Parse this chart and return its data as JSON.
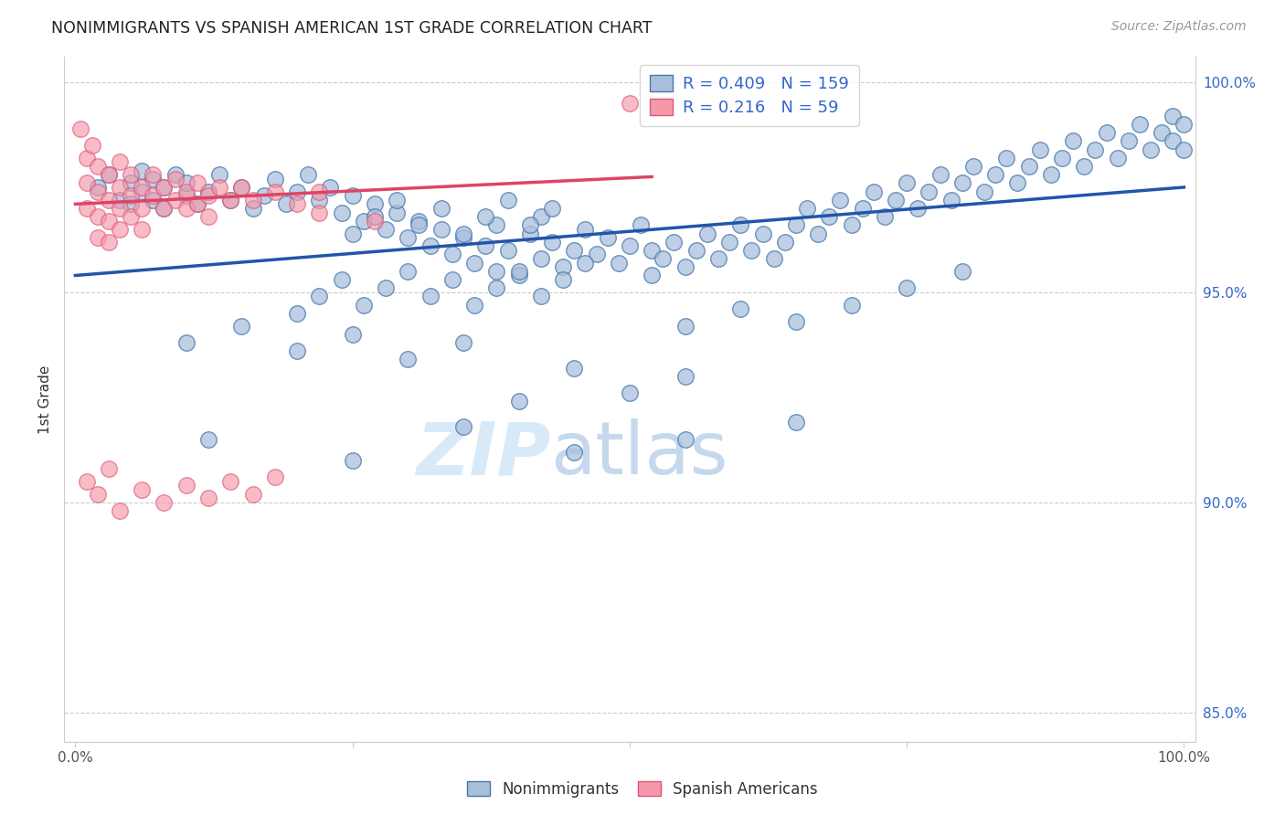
{
  "title": "NONIMMIGRANTS VS SPANISH AMERICAN 1ST GRADE CORRELATION CHART",
  "source": "Source: ZipAtlas.com",
  "ylabel": "1st Grade",
  "blue_R": 0.409,
  "blue_N": 159,
  "pink_R": 0.216,
  "pink_N": 59,
  "legend_text_color": "#3366cc",
  "blue_color": "#aabfdd",
  "pink_color": "#f599aa",
  "blue_edge_color": "#4477aa",
  "pink_edge_color": "#dd5577",
  "blue_line_color": "#2255aa",
  "pink_line_color": "#dd4466",
  "watermark_zip": "ZIP",
  "watermark_atlas": "atlas",
  "background_color": "#ffffff",
  "blue_line_x": [
    0.0,
    1.0
  ],
  "blue_line_y": [
    95.4,
    97.5
  ],
  "pink_line_x": [
    0.0,
    0.52
  ],
  "pink_line_y": [
    97.1,
    97.75
  ],
  "xlim": [
    -0.01,
    1.01
  ],
  "ylim": [
    84.3,
    100.6
  ],
  "yticks": [
    85.0,
    90.0,
    95.0,
    100.0
  ],
  "ytick_labels": [
    "85.0%",
    "90.0%",
    "95.0%",
    "100.0%"
  ],
  "blue_scatter": [
    [
      0.02,
      97.5
    ],
    [
      0.03,
      97.8
    ],
    [
      0.04,
      97.2
    ],
    [
      0.05,
      97.6
    ],
    [
      0.05,
      97.1
    ],
    [
      0.06,
      97.9
    ],
    [
      0.06,
      97.4
    ],
    [
      0.07,
      97.7
    ],
    [
      0.07,
      97.2
    ],
    [
      0.08,
      97.5
    ],
    [
      0.08,
      97.0
    ],
    [
      0.09,
      97.8
    ],
    [
      0.1,
      97.3
    ],
    [
      0.1,
      97.6
    ],
    [
      0.11,
      97.1
    ],
    [
      0.12,
      97.4
    ],
    [
      0.13,
      97.8
    ],
    [
      0.14,
      97.2
    ],
    [
      0.15,
      97.5
    ],
    [
      0.16,
      97.0
    ],
    [
      0.17,
      97.3
    ],
    [
      0.18,
      97.7
    ],
    [
      0.19,
      97.1
    ],
    [
      0.2,
      97.4
    ],
    [
      0.21,
      97.8
    ],
    [
      0.22,
      97.2
    ],
    [
      0.23,
      97.5
    ],
    [
      0.24,
      96.9
    ],
    [
      0.25,
      97.3
    ],
    [
      0.26,
      96.7
    ],
    [
      0.27,
      97.1
    ],
    [
      0.28,
      96.5
    ],
    [
      0.29,
      96.9
    ],
    [
      0.3,
      96.3
    ],
    [
      0.31,
      96.7
    ],
    [
      0.32,
      96.1
    ],
    [
      0.33,
      96.5
    ],
    [
      0.34,
      95.9
    ],
    [
      0.35,
      96.3
    ],
    [
      0.36,
      95.7
    ],
    [
      0.37,
      96.1
    ],
    [
      0.38,
      96.6
    ],
    [
      0.38,
      95.5
    ],
    [
      0.39,
      96.0
    ],
    [
      0.4,
      95.4
    ],
    [
      0.41,
      96.4
    ],
    [
      0.42,
      96.8
    ],
    [
      0.42,
      95.8
    ],
    [
      0.43,
      96.2
    ],
    [
      0.44,
      95.6
    ],
    [
      0.45,
      96.0
    ],
    [
      0.46,
      96.5
    ],
    [
      0.47,
      95.9
    ],
    [
      0.48,
      96.3
    ],
    [
      0.49,
      95.7
    ],
    [
      0.5,
      96.1
    ],
    [
      0.51,
      96.6
    ],
    [
      0.52,
      96.0
    ],
    [
      0.52,
      95.4
    ],
    [
      0.53,
      95.8
    ],
    [
      0.54,
      96.2
    ],
    [
      0.55,
      95.6
    ],
    [
      0.56,
      96.0
    ],
    [
      0.57,
      96.4
    ],
    [
      0.58,
      95.8
    ],
    [
      0.59,
      96.2
    ],
    [
      0.6,
      96.6
    ],
    [
      0.61,
      96.0
    ],
    [
      0.62,
      96.4
    ],
    [
      0.63,
      95.8
    ],
    [
      0.64,
      96.2
    ],
    [
      0.65,
      96.6
    ],
    [
      0.66,
      97.0
    ],
    [
      0.67,
      96.4
    ],
    [
      0.68,
      96.8
    ],
    [
      0.69,
      97.2
    ],
    [
      0.7,
      96.6
    ],
    [
      0.71,
      97.0
    ],
    [
      0.72,
      97.4
    ],
    [
      0.73,
      96.8
    ],
    [
      0.74,
      97.2
    ],
    [
      0.75,
      97.6
    ],
    [
      0.76,
      97.0
    ],
    [
      0.77,
      97.4
    ],
    [
      0.78,
      97.8
    ],
    [
      0.79,
      97.2
    ],
    [
      0.8,
      97.6
    ],
    [
      0.81,
      98.0
    ],
    [
      0.82,
      97.4
    ],
    [
      0.83,
      97.8
    ],
    [
      0.84,
      98.2
    ],
    [
      0.85,
      97.6
    ],
    [
      0.86,
      98.0
    ],
    [
      0.87,
      98.4
    ],
    [
      0.88,
      97.8
    ],
    [
      0.89,
      98.2
    ],
    [
      0.9,
      98.6
    ],
    [
      0.91,
      98.0
    ],
    [
      0.92,
      98.4
    ],
    [
      0.93,
      98.8
    ],
    [
      0.94,
      98.2
    ],
    [
      0.95,
      98.6
    ],
    [
      0.96,
      99.0
    ],
    [
      0.97,
      98.4
    ],
    [
      0.98,
      98.8
    ],
    [
      0.99,
      99.2
    ],
    [
      0.99,
      98.6
    ],
    [
      1.0,
      99.0
    ],
    [
      1.0,
      98.4
    ],
    [
      0.25,
      96.4
    ],
    [
      0.27,
      96.8
    ],
    [
      0.29,
      97.2
    ],
    [
      0.31,
      96.6
    ],
    [
      0.33,
      97.0
    ],
    [
      0.35,
      96.4
    ],
    [
      0.37,
      96.8
    ],
    [
      0.39,
      97.2
    ],
    [
      0.41,
      96.6
    ],
    [
      0.43,
      97.0
    ],
    [
      0.2,
      94.5
    ],
    [
      0.22,
      94.9
    ],
    [
      0.24,
      95.3
    ],
    [
      0.26,
      94.7
    ],
    [
      0.28,
      95.1
    ],
    [
      0.3,
      95.5
    ],
    [
      0.32,
      94.9
    ],
    [
      0.34,
      95.3
    ],
    [
      0.36,
      94.7
    ],
    [
      0.38,
      95.1
    ],
    [
      0.4,
      95.5
    ],
    [
      0.42,
      94.9
    ],
    [
      0.44,
      95.3
    ],
    [
      0.46,
      95.7
    ],
    [
      0.1,
      93.8
    ],
    [
      0.15,
      94.2
    ],
    [
      0.2,
      93.6
    ],
    [
      0.25,
      94.0
    ],
    [
      0.3,
      93.4
    ],
    [
      0.35,
      93.8
    ],
    [
      0.4,
      92.4
    ],
    [
      0.45,
      93.2
    ],
    [
      0.5,
      92.6
    ],
    [
      0.55,
      93.0
    ],
    [
      0.12,
      91.5
    ],
    [
      0.25,
      91.0
    ],
    [
      0.35,
      91.8
    ],
    [
      0.45,
      91.2
    ],
    [
      0.55,
      91.5
    ],
    [
      0.65,
      91.9
    ],
    [
      0.55,
      94.2
    ],
    [
      0.6,
      94.6
    ],
    [
      0.65,
      94.3
    ],
    [
      0.7,
      94.7
    ],
    [
      0.75,
      95.1
    ],
    [
      0.8,
      95.5
    ]
  ],
  "pink_scatter": [
    [
      0.005,
      98.9
    ],
    [
      0.01,
      98.2
    ],
    [
      0.01,
      97.6
    ],
    [
      0.01,
      97.0
    ],
    [
      0.015,
      98.5
    ],
    [
      0.02,
      98.0
    ],
    [
      0.02,
      97.4
    ],
    [
      0.02,
      96.8
    ],
    [
      0.02,
      96.3
    ],
    [
      0.03,
      97.8
    ],
    [
      0.03,
      97.2
    ],
    [
      0.03,
      96.7
    ],
    [
      0.03,
      96.2
    ],
    [
      0.04,
      98.1
    ],
    [
      0.04,
      97.5
    ],
    [
      0.04,
      97.0
    ],
    [
      0.04,
      96.5
    ],
    [
      0.05,
      97.8
    ],
    [
      0.05,
      97.3
    ],
    [
      0.05,
      96.8
    ],
    [
      0.06,
      97.5
    ],
    [
      0.06,
      97.0
    ],
    [
      0.06,
      96.5
    ],
    [
      0.07,
      97.8
    ],
    [
      0.07,
      97.3
    ],
    [
      0.08,
      97.5
    ],
    [
      0.08,
      97.0
    ],
    [
      0.09,
      97.7
    ],
    [
      0.09,
      97.2
    ],
    [
      0.1,
      97.4
    ],
    [
      0.1,
      97.0
    ],
    [
      0.11,
      97.6
    ],
    [
      0.11,
      97.1
    ],
    [
      0.12,
      97.3
    ],
    [
      0.12,
      96.8
    ],
    [
      0.13,
      97.5
    ],
    [
      0.14,
      97.2
    ],
    [
      0.15,
      97.5
    ],
    [
      0.16,
      97.2
    ],
    [
      0.18,
      97.4
    ],
    [
      0.2,
      97.1
    ],
    [
      0.22,
      97.4
    ],
    [
      0.22,
      96.9
    ],
    [
      0.01,
      90.5
    ],
    [
      0.02,
      90.2
    ],
    [
      0.03,
      90.8
    ],
    [
      0.04,
      89.8
    ],
    [
      0.06,
      90.3
    ],
    [
      0.08,
      90.0
    ],
    [
      0.1,
      90.4
    ],
    [
      0.12,
      90.1
    ],
    [
      0.14,
      90.5
    ],
    [
      0.16,
      90.2
    ],
    [
      0.18,
      90.6
    ],
    [
      0.5,
      99.5
    ],
    [
      0.27,
      96.7
    ]
  ]
}
